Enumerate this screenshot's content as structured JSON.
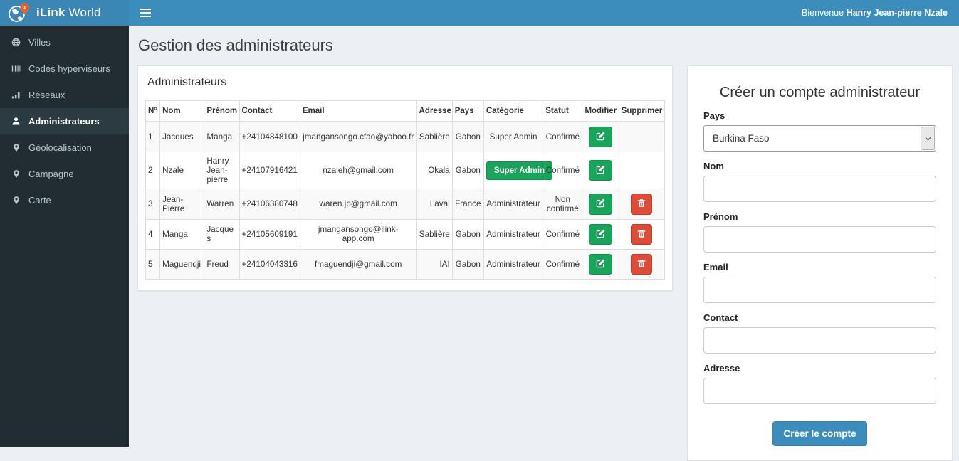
{
  "colors": {
    "navbar": "#3c8dbc",
    "sidebar": "#222d32",
    "sidebar_active": "#2c3b41",
    "success_green": "#1aa35b",
    "danger_red": "#dd4b39",
    "body_bg": "#ecf0f5",
    "pin_orange": "#e8622d"
  },
  "header": {
    "brand_bold": "iLink",
    "brand_regular": "World",
    "welcome_prefix": "Bienvenue",
    "welcome_name": "Hanry Jean-pierre Nzale"
  },
  "sidebar": {
    "items": [
      {
        "name": "villes",
        "label": "Villes",
        "icon": "globe-icon",
        "active": false
      },
      {
        "name": "codes-hyperviseurs",
        "label": "Codes hyperviseurs",
        "icon": "barcode-icon",
        "active": false
      },
      {
        "name": "reseaux",
        "label": "Réseaux",
        "icon": "signal-bars-icon",
        "active": false
      },
      {
        "name": "administrateurs",
        "label": "Administrateurs",
        "icon": "user-icon",
        "active": true
      },
      {
        "name": "geolocalisation",
        "label": "Géolocalisation",
        "icon": "map-marker-icon",
        "active": false
      },
      {
        "name": "campagne",
        "label": "Campagne",
        "icon": "map-marker-icon",
        "active": false
      },
      {
        "name": "carte",
        "label": "Carte",
        "icon": "map-marker-icon",
        "active": false
      }
    ]
  },
  "page": {
    "title": "Gestion des administrateurs"
  },
  "admins_panel": {
    "title": "Administrateurs",
    "columns": [
      "N°",
      "Nom",
      "Prénom",
      "Contact",
      "Email",
      "Adresse",
      "Pays",
      "Catégorie",
      "Statut",
      "Modifier",
      "Supprimer"
    ],
    "rows": [
      {
        "num": "1",
        "nom": "Jacques",
        "prenom": "Manga",
        "contact": "+24104848100",
        "email": "jmangansongo.cfao@yahoo.fr",
        "adresse": "Sablière",
        "pays": "Gabon",
        "categorie": "Super Admin",
        "categorie_badge": false,
        "statut": "Confirmé",
        "can_modify": true,
        "can_delete": false
      },
      {
        "num": "2",
        "nom": "Nzale",
        "prenom": "Hanry Jean-pierre",
        "contact": "+24107916421",
        "email": "nzaleh@gmail.com",
        "adresse": "Okala",
        "pays": "Gabon",
        "categorie": "Super Admin",
        "categorie_badge": true,
        "statut": "Confirmé",
        "can_modify": true,
        "can_delete": false
      },
      {
        "num": "3",
        "nom": "Jean-Pierre",
        "prenom": "Warren",
        "contact": "+24106380748",
        "email": "waren.jp@gmail.com",
        "adresse": "Laval",
        "pays": "France",
        "categorie": "Administrateur",
        "categorie_badge": false,
        "statut": "Non confirmé",
        "can_modify": true,
        "can_delete": true
      },
      {
        "num": "4",
        "nom": "Manga",
        "prenom": "Jacques",
        "contact": "+24105609191",
        "email": "jmangansongo@ilink-app.com",
        "adresse": "Sablière",
        "pays": "Gabon",
        "categorie": "Administrateur",
        "categorie_badge": false,
        "statut": "Confirmé",
        "can_modify": true,
        "can_delete": true
      },
      {
        "num": "5",
        "nom": "Maguendji",
        "prenom": "Freud",
        "contact": "+24104043316",
        "email": "fmaguendji@gmail.com",
        "adresse": "IAI",
        "pays": "Gabon",
        "categorie": "Administrateur",
        "categorie_badge": false,
        "statut": "Confirmé",
        "can_modify": true,
        "can_delete": true
      }
    ]
  },
  "create_form": {
    "title": "Créer un compte administrateur",
    "pays_label": "Pays",
    "pays_value": "Burkina Faso",
    "nom_label": "Nom",
    "prenom_label": "Prénom",
    "email_label": "Email",
    "contact_label": "Contact",
    "adresse_label": "Adresse",
    "nom_value": "",
    "prenom_value": "",
    "email_value": "",
    "contact_value": "",
    "adresse_value": "",
    "submit_label": "Créer le compte"
  }
}
